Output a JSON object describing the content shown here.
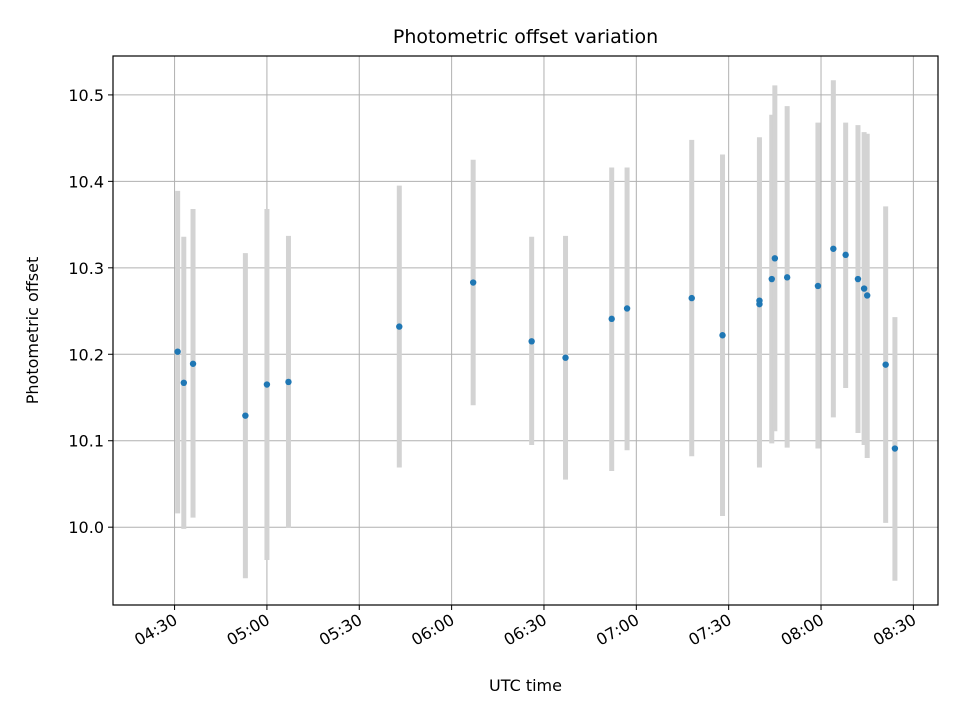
{
  "chart_data": {
    "type": "scatter",
    "title": "Photometric offset variation",
    "xlabel": "UTC time",
    "ylabel": "Photometric offset",
    "x_type": "time",
    "xlim": [
      "04:10",
      "08:38"
    ],
    "ylim": [
      9.91,
      10.545
    ],
    "x_ticks": [
      "04:30",
      "05:00",
      "05:30",
      "06:00",
      "06:30",
      "07:00",
      "07:30",
      "08:00",
      "08:30"
    ],
    "y_ticks": [
      10.0,
      10.1,
      10.2,
      10.3,
      10.4,
      10.5
    ],
    "y_tick_labels": [
      "10.0",
      "10.1",
      "10.2",
      "10.3",
      "10.4",
      "10.5"
    ],
    "grid": true,
    "point_color": "#1f77b4",
    "errorbar_color": "#d3d3d3",
    "points": [
      {
        "x": "04:31",
        "y": 10.203,
        "ylow": 10.016,
        "yhigh": 10.389
      },
      {
        "x": "04:33",
        "y": 10.167,
        "ylow": 9.998,
        "yhigh": 10.336
      },
      {
        "x": "04:36",
        "y": 10.189,
        "ylow": 10.011,
        "yhigh": 10.368
      },
      {
        "x": "04:53",
        "y": 10.129,
        "ylow": 9.941,
        "yhigh": 10.317
      },
      {
        "x": "05:00",
        "y": 10.165,
        "ylow": 9.962,
        "yhigh": 10.368
      },
      {
        "x": "05:07",
        "y": 10.168,
        "ylow": 9.999,
        "yhigh": 10.337
      },
      {
        "x": "05:43",
        "y": 10.232,
        "ylow": 10.069,
        "yhigh": 10.395
      },
      {
        "x": "06:07",
        "y": 10.283,
        "ylow": 10.141,
        "yhigh": 10.425
      },
      {
        "x": "06:26",
        "y": 10.215,
        "ylow": 10.095,
        "yhigh": 10.336
      },
      {
        "x": "06:37",
        "y": 10.196,
        "ylow": 10.055,
        "yhigh": 10.337
      },
      {
        "x": "06:52",
        "y": 10.241,
        "ylow": 10.065,
        "yhigh": 10.416
      },
      {
        "x": "06:57",
        "y": 10.253,
        "ylow": 10.089,
        "yhigh": 10.416
      },
      {
        "x": "07:18",
        "y": 10.265,
        "ylow": 10.082,
        "yhigh": 10.448
      },
      {
        "x": "07:28",
        "y": 10.222,
        "ylow": 10.013,
        "yhigh": 10.431
      },
      {
        "x": "07:40",
        "y": 10.258,
        "ylow": 10.069,
        "yhigh": 10.446
      },
      {
        "x": "07:40",
        "y": 10.262,
        "ylow": 10.073,
        "yhigh": 10.451
      },
      {
        "x": "07:44",
        "y": 10.287,
        "ylow": 10.097,
        "yhigh": 10.477
      },
      {
        "x": "07:45",
        "y": 10.311,
        "ylow": 10.111,
        "yhigh": 10.511
      },
      {
        "x": "07:49",
        "y": 10.289,
        "ylow": 10.092,
        "yhigh": 10.487
      },
      {
        "x": "07:59",
        "y": 10.279,
        "ylow": 10.091,
        "yhigh": 10.468
      },
      {
        "x": "08:04",
        "y": 10.322,
        "ylow": 10.127,
        "yhigh": 10.517
      },
      {
        "x": "08:08",
        "y": 10.315,
        "ylow": 10.161,
        "yhigh": 10.468
      },
      {
        "x": "08:12",
        "y": 10.287,
        "ylow": 10.109,
        "yhigh": 10.465
      },
      {
        "x": "08:14",
        "y": 10.276,
        "ylow": 10.095,
        "yhigh": 10.457
      },
      {
        "x": "08:15",
        "y": 10.268,
        "ylow": 10.08,
        "yhigh": 10.455
      },
      {
        "x": "08:21",
        "y": 10.188,
        "ylow": 10.005,
        "yhigh": 10.371
      },
      {
        "x": "08:24",
        "y": 10.091,
        "ylow": 9.938,
        "yhigh": 10.243
      }
    ]
  }
}
